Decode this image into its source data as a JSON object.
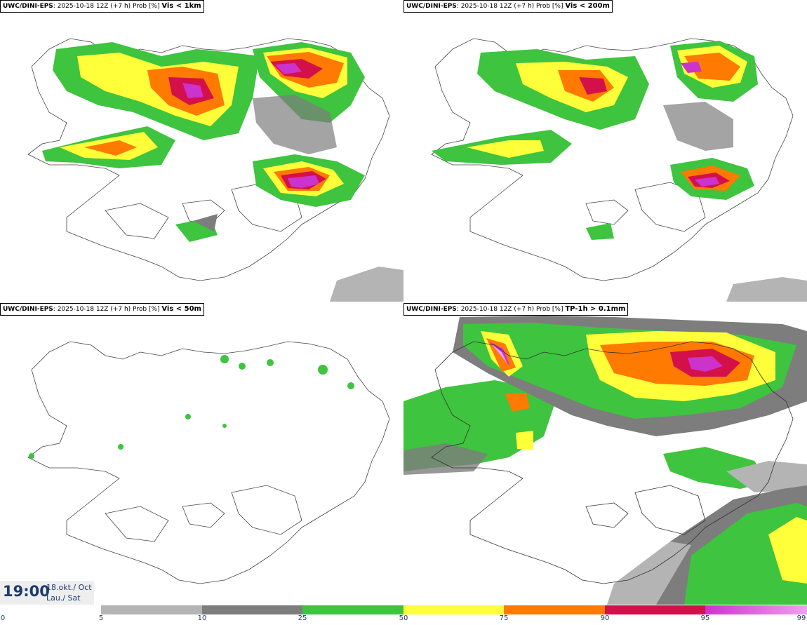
{
  "panels": [
    {
      "model": "UWC/DINI-EPS",
      "run": ": 2025-10-18 12Z (+7 h) Prob [%]",
      "variable": "Vis < 1km"
    },
    {
      "model": "UWC/DINI-EPS",
      "run": ": 2025-10-18 12Z (+7 h) Prob [%]",
      "variable": "Vis < 200m"
    },
    {
      "model": "UWC/DINI-EPS",
      "run": ": 2025-10-18 12Z (+7 h) Prob [%]",
      "variable": "Vis < 50m"
    },
    {
      "model": "UWC/DINI-EPS",
      "run": ": 2025-10-18 12Z (+7 h) Prob [%]",
      "variable": "TP-1h > 0.1mm"
    }
  ],
  "valid_time": {
    "time": "19:00",
    "date_line1": "18.okt./ Oct",
    "date_line2": "Lau./ Sat"
  },
  "colorbar": {
    "ticks": [
      "0",
      "5",
      "10",
      "25",
      "50",
      "75",
      "90",
      "95",
      "99"
    ],
    "colors": {
      "p5": "#b4b4b4",
      "p10": "#7d7d7d",
      "p25": "#3ec43e",
      "p50": "#ffff3a",
      "p75": "#ff7a00",
      "p90": "#d4104a",
      "p95": "#cc33cc",
      "p99": "#f0a0f0"
    }
  }
}
